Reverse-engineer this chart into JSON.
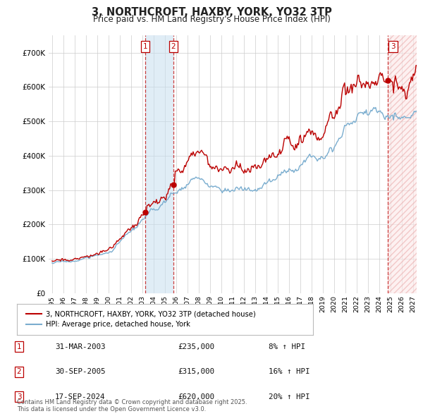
{
  "title": "3, NORTHCROFT, HAXBY, YORK, YO32 3TP",
  "subtitle": "Price paid vs. HM Land Registry's House Price Index (HPI)",
  "legend_line1": "3, NORTHCROFT, HAXBY, YORK, YO32 3TP (detached house)",
  "legend_line2": "HPI: Average price, detached house, York",
  "sales": [
    {
      "num": 1,
      "date_yr": 2003.25,
      "price": 235000,
      "pct": "8%",
      "label": "31-MAR-2003",
      "price_label": "£235,000"
    },
    {
      "num": 2,
      "date_yr": 2005.75,
      "price": 315000,
      "pct": "16%",
      "label": "30-SEP-2005",
      "price_label": "£315,000"
    },
    {
      "num": 3,
      "date_yr": 2024.71,
      "price": 620000,
      "pct": "20%",
      "label": "17-SEP-2024",
      "price_label": "£620,000"
    }
  ],
  "footer": "Contains HM Land Registry data © Crown copyright and database right 2025.\nThis data is licensed under the Open Government Licence v3.0.",
  "red_color": "#bb0000",
  "blue_color": "#7aadcf",
  "background_color": "#ffffff",
  "grid_color": "#cccccc",
  "ylim": [
    0,
    750000
  ],
  "yticks": [
    0,
    100000,
    200000,
    300000,
    400000,
    500000,
    600000,
    700000
  ],
  "xmin": 1994.7,
  "xmax": 2027.3
}
